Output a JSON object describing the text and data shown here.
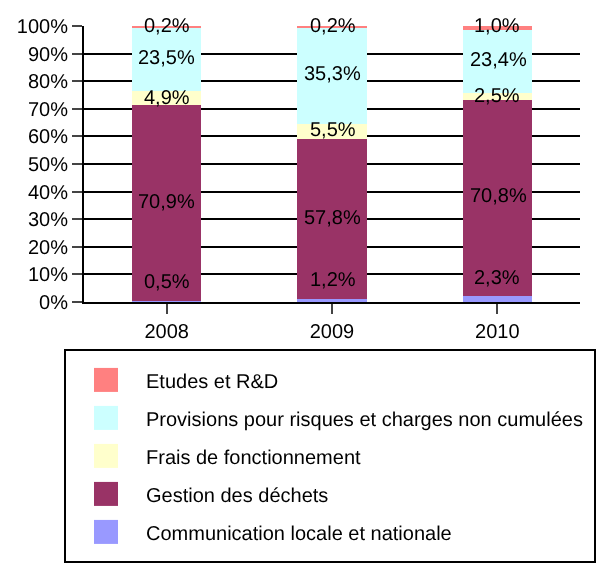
{
  "chart_data": {
    "type": "bar",
    "stacked": true,
    "categories": [
      "2008",
      "2009",
      "2010"
    ],
    "series": [
      {
        "name": "Communication locale et nationale",
        "color": "#9999ff",
        "values": [
          0.5,
          1.2,
          2.3
        ],
        "value_labels": [
          "0,5%",
          "1,2%",
          "2,3%"
        ]
      },
      {
        "name": "Gestion des déchets",
        "color": "#993366",
        "values": [
          70.9,
          57.8,
          70.8
        ],
        "value_labels": [
          "70,9%",
          "57,8%",
          "70,8%"
        ]
      },
      {
        "name": "Frais de fonctionnement",
        "color": "#ffffcc",
        "values": [
          4.9,
          5.5,
          2.5
        ],
        "value_labels": [
          "4,9%",
          "5,5%",
          "2,5%"
        ]
      },
      {
        "name": "Provisions pour risques et charges non cumulées",
        "color": "#ccffff",
        "values": [
          23.5,
          35.3,
          23.4
        ],
        "value_labels": [
          "23,5%",
          "35,3%",
          "23,4%"
        ]
      },
      {
        "name": "Etudes et R&D",
        "color": "#ff8080",
        "values": [
          0.2,
          0.2,
          1.0
        ],
        "value_labels": [
          "0,2%",
          "0,2%",
          "1,0%"
        ]
      }
    ],
    "ylim": [
      0,
      100
    ],
    "yticks": [
      {
        "value": 0,
        "label": "0%"
      },
      {
        "value": 10,
        "label": "10%"
      },
      {
        "value": 20,
        "label": "20%"
      },
      {
        "value": 30,
        "label": "30%"
      },
      {
        "value": 40,
        "label": "40%"
      },
      {
        "value": 50,
        "label": "50%"
      },
      {
        "value": 60,
        "label": "60%"
      },
      {
        "value": 70,
        "label": "70%"
      },
      {
        "value": 80,
        "label": "80%"
      },
      {
        "value": 90,
        "label": "90%"
      },
      {
        "value": 100,
        "label": "100%"
      }
    ],
    "grid": "y",
    "legend": "bottom"
  }
}
